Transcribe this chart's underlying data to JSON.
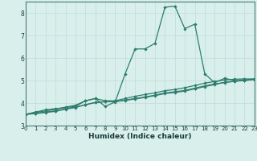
{
  "xlabel": "Humidex (Indice chaleur)",
  "x_values": [
    0,
    1,
    2,
    3,
    4,
    5,
    6,
    7,
    8,
    9,
    10,
    11,
    12,
    13,
    14,
    15,
    16,
    17,
    18,
    19,
    20,
    21,
    22,
    23
  ],
  "line1": [
    3.5,
    3.6,
    3.7,
    3.75,
    3.8,
    3.85,
    4.1,
    4.2,
    3.85,
    4.05,
    5.3,
    6.4,
    6.4,
    6.65,
    8.25,
    8.3,
    7.3,
    7.5,
    5.3,
    4.9,
    5.1,
    5.0,
    5.0,
    5.05
  ],
  "line2": [
    3.5,
    3.58,
    3.65,
    3.72,
    3.82,
    3.9,
    4.1,
    4.2,
    4.1,
    4.1,
    4.2,
    4.3,
    4.38,
    4.45,
    4.55,
    4.6,
    4.68,
    4.78,
    4.88,
    4.96,
    5.02,
    5.06,
    5.07,
    5.07
  ],
  "line3": [
    3.5,
    3.54,
    3.6,
    3.65,
    3.75,
    3.82,
    3.92,
    4.02,
    4.06,
    4.06,
    4.12,
    4.18,
    4.25,
    4.33,
    4.42,
    4.47,
    4.53,
    4.63,
    4.73,
    4.82,
    4.92,
    4.97,
    5.02,
    5.07
  ],
  "line4": [
    3.5,
    3.53,
    3.58,
    3.63,
    3.73,
    3.8,
    3.93,
    4.03,
    4.06,
    4.07,
    4.13,
    4.2,
    4.27,
    4.35,
    4.45,
    4.5,
    4.56,
    4.66,
    4.76,
    4.85,
    4.91,
    4.96,
    5.0,
    5.05
  ],
  "line_color": "#2e7d6e",
  "bg_color": "#d8efec",
  "grid_color_major": "#c0dbd8",
  "grid_color_minor": "#c8e4e0",
  "ylim": [
    3.0,
    8.5
  ],
  "xlim": [
    0,
    23
  ],
  "yticks": [
    3,
    4,
    5,
    6,
    7,
    8
  ],
  "xticks": [
    0,
    1,
    2,
    3,
    4,
    5,
    6,
    7,
    8,
    9,
    10,
    11,
    12,
    13,
    14,
    15,
    16,
    17,
    18,
    19,
    20,
    21,
    22,
    23
  ]
}
